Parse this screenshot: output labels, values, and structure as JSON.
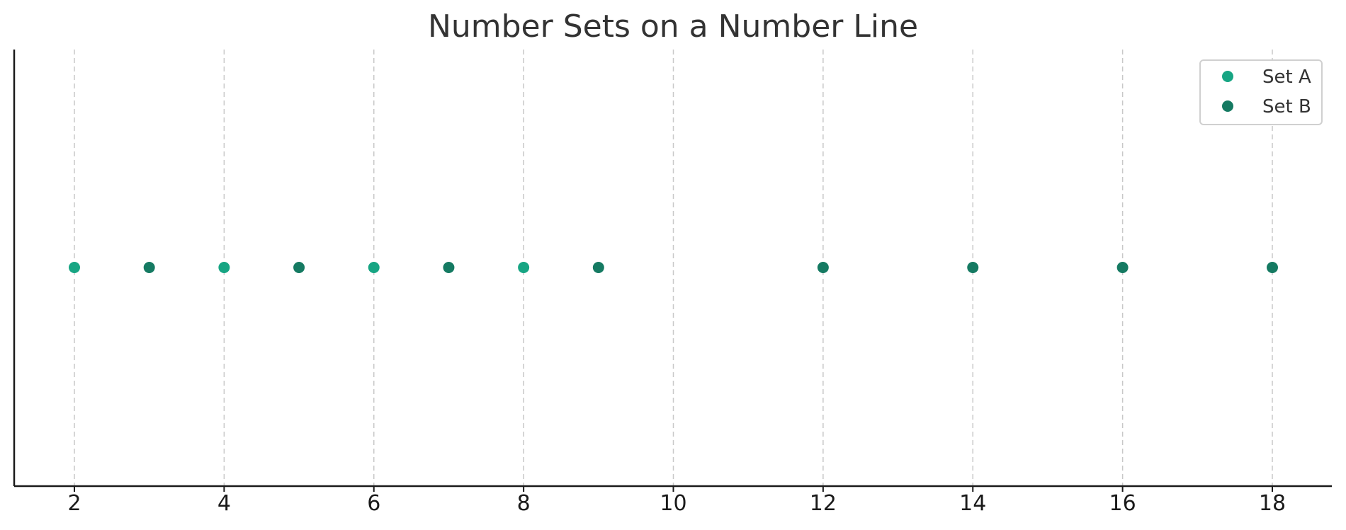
{
  "chart_data": {
    "type": "scatter",
    "title": "Number Sets on a Number Line",
    "xlabel": "",
    "ylabel": "",
    "xlim": [
      1.2,
      18.8
    ],
    "xticks": [
      2,
      4,
      6,
      8,
      10,
      12,
      14,
      16,
      18
    ],
    "grid": "vertical-dashed",
    "legend_position": "top-right",
    "series": [
      {
        "name": "Set A",
        "color": "#17a583",
        "x": [
          2,
          4,
          6,
          8
        ],
        "y": [
          0,
          0,
          0,
          0
        ]
      },
      {
        "name": "Set B",
        "color": "#157a62",
        "x": [
          3,
          5,
          7,
          9,
          12,
          14,
          16,
          18
        ],
        "y": [
          0,
          0,
          0,
          0,
          0,
          0,
          0,
          0
        ]
      }
    ]
  }
}
